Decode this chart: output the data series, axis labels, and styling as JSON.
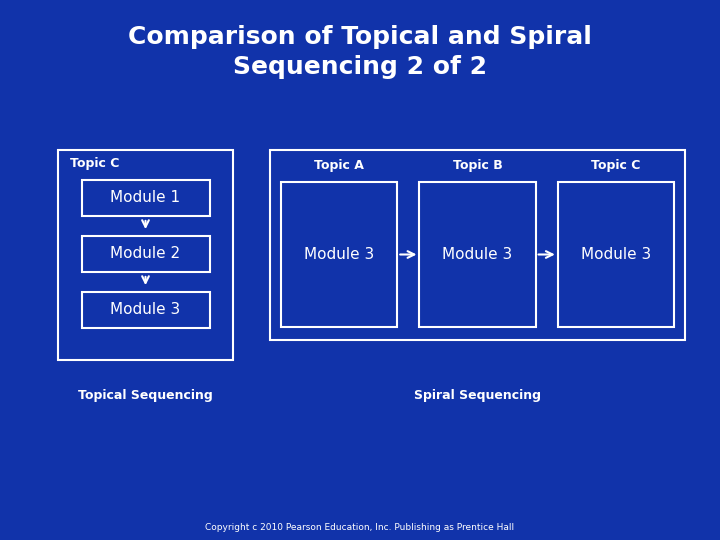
{
  "title": "Comparison of Topical and Spiral\nSequencing 2 of 2",
  "title_fontsize": 18,
  "bg_color": "#1133aa",
  "text_color": "#ffffff",
  "box_color": "#ffffff",
  "label_fontsize": 9,
  "module_fontsize": 11,
  "topic_label_fontsize": 9,
  "topical_label": "Topical Sequencing",
  "spiral_label": "Spiral Sequencing",
  "copyright": "Copyright c 2010 Pearson Education, Inc. Publishing as Prentice Hall",
  "topic_c_label": "Topic C",
  "topic_a_label": "Topic A",
  "topic_b_label": "Topic B",
  "topic_c2_label": "Topic C",
  "module1_label": "Module 1",
  "module2_label": "Module 2",
  "module3_label": "Module 3",
  "module3a_label": "Module 3",
  "module3b_label": "Module 3",
  "module3c_label": "Module 3"
}
